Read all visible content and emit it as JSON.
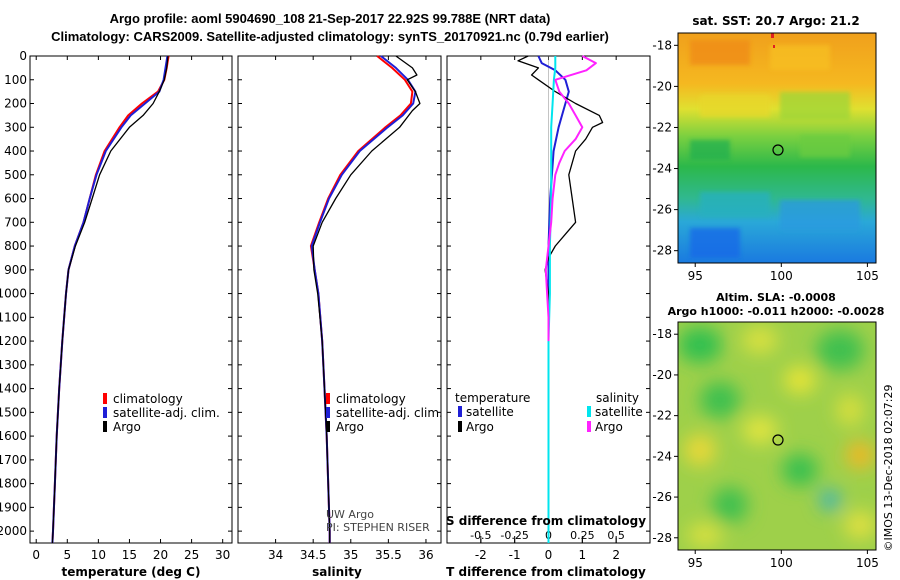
{
  "header": {
    "line1": "Argo profile: aoml 5904690_108 21-Sep-2017 22.92S 99.788E (NRT data)",
    "line2": "Climatology: CARS2009. Satellite-adjusted climatology: synTS_20170921.nc (0.79d earlier)"
  },
  "colors": {
    "climatology": "#ff0000",
    "satellite": "#1f1fd6",
    "argo": "#000000",
    "s_satellite": "#00e5ee",
    "s_argo": "#ff22ff"
  },
  "depth_axis": {
    "min": 0,
    "max": 2050,
    "ticks": [
      0,
      100,
      200,
      300,
      400,
      500,
      600,
      700,
      800,
      900,
      1000,
      1100,
      1200,
      1300,
      1400,
      1500,
      1600,
      1700,
      1800,
      1900,
      2000
    ]
  },
  "chart_data": [
    {
      "type": "line",
      "panel": "temperature",
      "xlabel": "temperature (deg C)",
      "xlim": [
        -1,
        31.5
      ],
      "xticks": [
        0,
        5,
        10,
        15,
        20,
        25,
        30
      ],
      "ylim": [
        0,
        2050
      ],
      "legend": [
        "climatology",
        "satellite-adj. clim.",
        "Argo"
      ],
      "series": [
        {
          "name": "climatology",
          "depth": [
            0,
            50,
            100,
            150,
            200,
            250,
            300,
            400,
            500,
            600,
            700,
            800,
            900,
            1000,
            1200,
            1400,
            1600,
            1800,
            2000,
            2050
          ],
          "values": [
            21.3,
            21.0,
            20.6,
            19.6,
            17.0,
            14.8,
            13.4,
            11.0,
            9.6,
            8.6,
            7.6,
            6.2,
            5.2,
            4.8,
            4.2,
            3.7,
            3.3,
            3.0,
            2.7,
            2.6
          ]
        },
        {
          "name": "satellite-adj. clim.",
          "depth": [
            0,
            50,
            100,
            150,
            200,
            250,
            300,
            400,
            500,
            600,
            700,
            800,
            900,
            1000,
            1200,
            1400,
            1600,
            1800,
            2000,
            2050
          ],
          "values": [
            21.1,
            20.8,
            20.5,
            19.8,
            17.5,
            15.2,
            13.7,
            11.2,
            9.7,
            8.6,
            7.6,
            6.2,
            5.2,
            4.8,
            4.2,
            3.7,
            3.3,
            3.0,
            2.7,
            2.6
          ]
        },
        {
          "name": "Argo",
          "depth": [
            0,
            50,
            100,
            150,
            200,
            250,
            300,
            400,
            500,
            600,
            700,
            800,
            900,
            1000,
            1200,
            1400,
            1600,
            1800,
            2000,
            2050
          ],
          "values": [
            21.2,
            21.0,
            20.6,
            19.8,
            18.8,
            17.2,
            15.0,
            12.0,
            10.2,
            9.0,
            7.8,
            6.3,
            5.2,
            4.8,
            4.2,
            3.7,
            3.3,
            3.0,
            2.7,
            2.6
          ]
        }
      ]
    },
    {
      "type": "line",
      "panel": "salinity",
      "xlabel": "salinity",
      "xlim": [
        33.5,
        36.2
      ],
      "xticks": [
        34,
        34.5,
        35,
        35.5,
        36
      ],
      "ylim": [
        0,
        2050
      ],
      "legend": [
        "climatology",
        "satellite-adj. clim.",
        "Argo"
      ],
      "annotation": [
        "UW Argo",
        "PI: STEPHEN RISER"
      ],
      "series": [
        {
          "name": "climatology",
          "depth": [
            0,
            50,
            100,
            150,
            200,
            250,
            300,
            400,
            500,
            600,
            700,
            800,
            900,
            1000,
            1200,
            1400,
            1600,
            1800,
            2000,
            2050
          ],
          "values": [
            35.35,
            35.55,
            35.72,
            35.82,
            35.8,
            35.66,
            35.46,
            35.1,
            34.86,
            34.7,
            34.58,
            34.47,
            34.52,
            34.57,
            34.62,
            34.65,
            34.68,
            34.7,
            34.72,
            34.72
          ]
        },
        {
          "name": "satellite-adj. clim.",
          "depth": [
            0,
            50,
            100,
            150,
            200,
            250,
            300,
            400,
            500,
            600,
            700,
            800,
            900,
            1000,
            1200,
            1400,
            1600,
            1800,
            2000,
            2050
          ],
          "values": [
            35.4,
            35.6,
            35.76,
            35.86,
            35.83,
            35.69,
            35.49,
            35.12,
            34.88,
            34.71,
            34.59,
            34.48,
            34.52,
            34.57,
            34.62,
            34.65,
            34.68,
            34.7,
            34.72,
            34.72
          ]
        },
        {
          "name": "Argo",
          "depth": [
            0,
            50,
            80,
            100,
            150,
            200,
            230,
            300,
            400,
            500,
            600,
            700,
            800,
            900,
            1000,
            1200,
            1400,
            1600,
            1800,
            2000,
            2050
          ],
          "values": [
            35.6,
            35.82,
            35.88,
            35.75,
            35.86,
            35.92,
            35.82,
            35.65,
            35.28,
            35.0,
            34.8,
            34.62,
            34.5,
            34.51,
            34.56,
            34.62,
            34.65,
            34.68,
            34.7,
            34.72,
            34.72
          ]
        }
      ]
    },
    {
      "type": "line",
      "panel": "difference",
      "xlabel": "T difference from climatology",
      "xlim": [
        -3,
        3
      ],
      "xticks": [
        -2,
        -1,
        0,
        1,
        2
      ],
      "s_axis_label": "S difference from climatology",
      "s_ticks": [
        "-0.5",
        "-0.25",
        "0",
        "0.25",
        "0.5"
      ],
      "s_tick_values": [
        -0.5,
        -0.25,
        0,
        0.25,
        0.5
      ],
      "ylim": [
        0,
        2050
      ],
      "legend_temperature": {
        "title": "temperature",
        "items": [
          "satellite",
          "Argo"
        ]
      },
      "legend_salinity": {
        "title": "salinity",
        "items": [
          "satellite",
          "Argo"
        ]
      },
      "series": [
        {
          "name": "T satellite",
          "depth": [
            0,
            30,
            60,
            100,
            150,
            200,
            250,
            300,
            400,
            600,
            800,
            1000,
            1200,
            1500,
            2000,
            2050
          ],
          "values": [
            -0.3,
            -0.2,
            0.2,
            0.5,
            0.6,
            0.5,
            0.4,
            0.3,
            0.15,
            0.05,
            0.0,
            0.0,
            0.0,
            0.0,
            0.0,
            0.0
          ]
        },
        {
          "name": "T Argo",
          "depth": [
            0,
            20,
            50,
            80,
            100,
            150,
            200,
            250,
            280,
            300,
            350,
            400,
            450,
            500,
            600,
            700,
            750,
            800,
            850,
            900,
            1000,
            1200,
            1400,
            1600,
            1800,
            2000,
            2050
          ],
          "values": [
            -0.6,
            -0.9,
            -0.3,
            -0.5,
            -0.3,
            0.2,
            0.8,
            1.5,
            1.6,
            1.3,
            1.1,
            0.8,
            0.7,
            0.6,
            0.7,
            0.8,
            0.5,
            0.2,
            0.0,
            -0.1,
            0.0,
            0.0,
            0.0,
            0.0,
            0.0,
            0.0,
            0.0
          ]
        },
        {
          "name": "S satellite",
          "depth": [
            0,
            50,
            100,
            200,
            300,
            400,
            600,
            800,
            1000,
            1200,
            1500,
            2000,
            2050
          ],
          "values": [
            0.05,
            0.05,
            0.04,
            0.03,
            0.02,
            0.02,
            0.02,
            0.01,
            0.01,
            0.0,
            0.0,
            0.0,
            0.0
          ]
        },
        {
          "name": "S Argo",
          "depth": [
            0,
            30,
            60,
            100,
            150,
            200,
            250,
            300,
            350,
            400,
            450,
            500,
            600,
            700,
            800,
            900,
            1000,
            1100,
            1200
          ],
          "values": [
            0.25,
            0.35,
            0.28,
            0.05,
            0.08,
            0.15,
            0.2,
            0.25,
            0.2,
            0.12,
            0.08,
            0.05,
            0.03,
            0.02,
            0.0,
            -0.02,
            -0.01,
            0.0,
            0.0
          ]
        }
      ]
    }
  ],
  "maps": {
    "sst": {
      "title": "sat. SST: 20.7 Argo: 21.2",
      "lat_ticks": [
        -18,
        -20,
        -22,
        -24,
        -26,
        -28
      ],
      "lon_ticks": [
        95,
        100,
        105
      ]
    },
    "sla": {
      "title_line1": "Altim. SLA: -0.0008",
      "title_line2": "Argo h1000: -0.011 h2000: -0.0028",
      "lat_ticks": [
        -18,
        -20,
        -22,
        -24,
        -26,
        -28
      ],
      "lon_ticks": [
        95,
        100,
        105
      ]
    }
  },
  "credit": "©IMOS 13-Dec-2018 02:07:29"
}
